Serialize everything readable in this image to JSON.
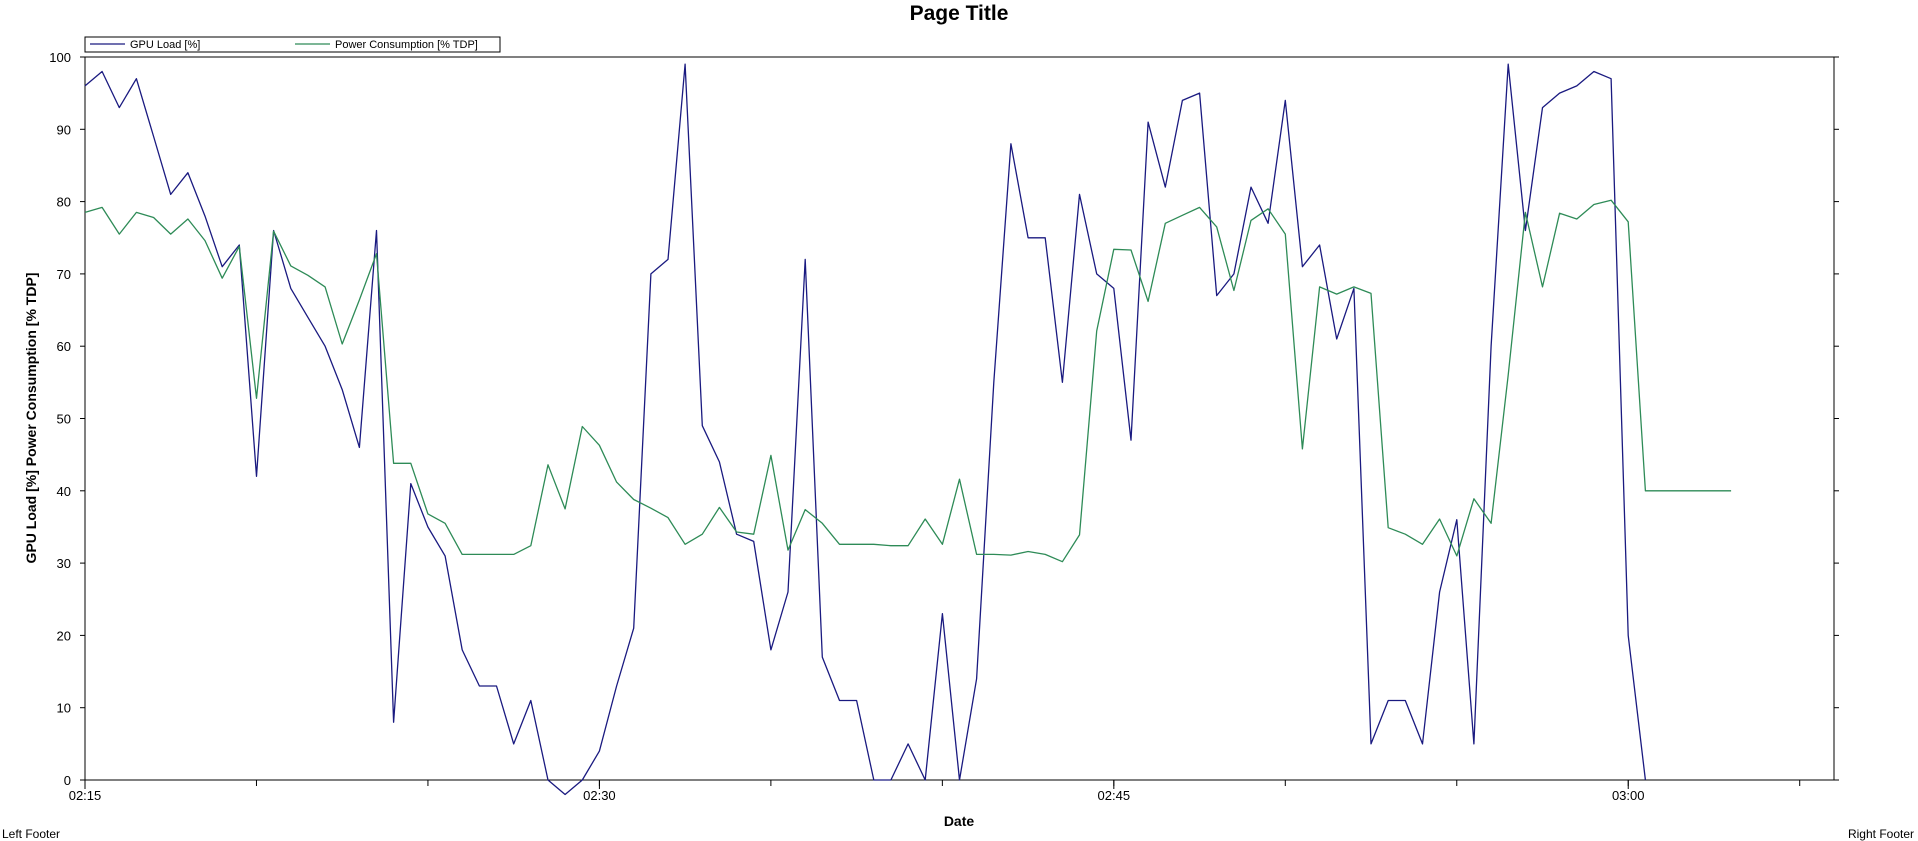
{
  "footer": {
    "left": "Left Footer",
    "right": "Right Footer"
  },
  "chart_data": {
    "type": "line",
    "title": "Page Title",
    "xlabel": "Date",
    "ylabel": "GPU Load [%] Power Consumption [% TDP]",
    "ylim": [
      0,
      100
    ],
    "yticks": [
      0,
      10,
      20,
      30,
      40,
      50,
      60,
      70,
      80,
      90,
      100
    ],
    "xlim": [
      "02:15",
      "03:06"
    ],
    "xticks": [
      "02:15",
      "02:30",
      "02:45",
      "03:00"
    ],
    "x_minor_tick_interval_min": 5,
    "x_sample_interval_sec": 30,
    "grid": false,
    "legend_position": "top-left",
    "series": [
      {
        "name": "GPU Load [%]",
        "color": "#1a1a80",
        "values": [
          96,
          98,
          93,
          97,
          89,
          81,
          84,
          78,
          71,
          74,
          42,
          76,
          68,
          64,
          60,
          54,
          46,
          76,
          8,
          41,
          35,
          31,
          18,
          13,
          13,
          5,
          11,
          0,
          -2,
          0,
          4,
          13,
          21,
          70,
          72,
          99,
          49,
          44,
          34,
          33,
          18,
          26,
          72,
          17,
          11,
          11,
          0,
          0,
          5,
          0,
          23,
          0,
          14,
          55,
          88,
          75,
          75,
          55,
          81,
          70,
          68,
          47,
          91,
          82,
          94,
          95,
          67,
          70,
          82,
          77,
          94,
          71,
          74,
          61,
          68,
          5,
          11,
          11,
          5,
          26,
          36,
          5,
          60,
          99,
          76,
          93,
          95,
          96,
          98,
          97,
          20,
          0
        ]
      },
      {
        "name": "Power Consumption [% TDP]",
        "color": "#2e8b57",
        "values": [
          78.5,
          79.2,
          75.5,
          78.5,
          77.8,
          75.5,
          77.6,
          74.6,
          69.4,
          73.8,
          52.8,
          75.9,
          71.1,
          69.8,
          68.2,
          60.3,
          66.4,
          72.8,
          43.8,
          43.8,
          36.8,
          35.5,
          31.2,
          31.2,
          31.2,
          31.2,
          32.4,
          43.6,
          37.5,
          48.9,
          46.3,
          41.2,
          38.8,
          37.6,
          36.3,
          32.6,
          34.0,
          37.7,
          34.3,
          34.0,
          44.9,
          31.8,
          37.4,
          35.5,
          32.6,
          32.6,
          32.6,
          32.4,
          32.4,
          36.1,
          32.6,
          41.6,
          31.2,
          31.2,
          31.1,
          31.6,
          31.2,
          30.2,
          33.9,
          62.1,
          73.4,
          73.3,
          66.2,
          77.0,
          78.1,
          79.2,
          76.5,
          67.7,
          77.4,
          79.0,
          75.5,
          45.8,
          68.2,
          67.2,
          68.2,
          67.3,
          34.9,
          34.0,
          32.6,
          36.1,
          31.0,
          38.9,
          35.5,
          56.0,
          78.5,
          68.2,
          78.4,
          77.6,
          79.6,
          80.2,
          77.2,
          40.0,
          40.0,
          40.0,
          40.0,
          40.0,
          40.0
        ]
      }
    ]
  }
}
